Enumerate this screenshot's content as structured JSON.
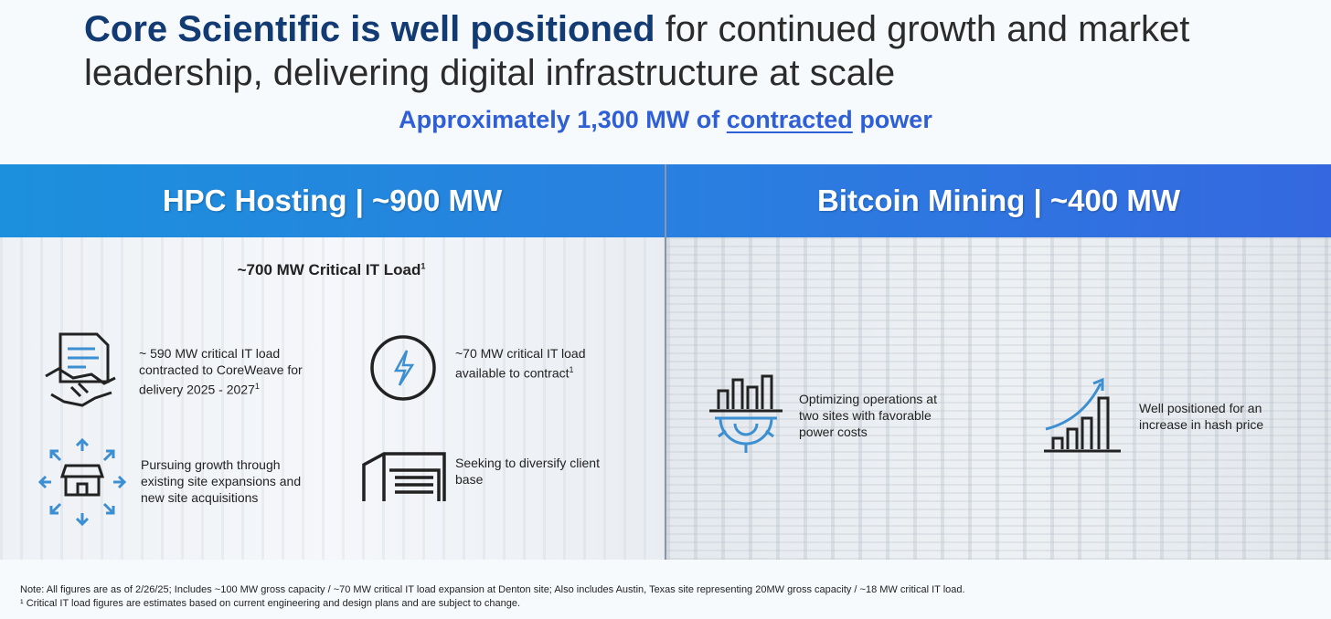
{
  "title": {
    "bold": "Core Scientific is well positioned",
    "rest": " for continued growth and market leadership, delivering digital infrastructure at scale"
  },
  "subtitle": {
    "before": "Approximately 1,300 MW of ",
    "underlined": "contracted",
    "after": " power"
  },
  "left": {
    "header": "HPC Hosting | ~900 MW",
    "heading": {
      "text": "~700 MW Critical IT Load",
      "sup": "1"
    },
    "items": [
      {
        "text": "~ 590 MW critical IT load contracted to CoreWeave for delivery 2025 - 2027",
        "sup": "1"
      },
      {
        "text": "~70 MW critical IT load available to contract",
        "sup": "1"
      },
      {
        "text": "Pursuing growth through existing site expansions and new site acquisitions"
      },
      {
        "text": "Seeking to diversify client base"
      }
    ]
  },
  "right": {
    "header": "Bitcoin Mining | ~400 MW",
    "items": [
      {
        "text": "Optimizing operations at two sites with favorable power costs"
      },
      {
        "text": "Well positioned for an increase in hash price"
      }
    ]
  },
  "notes": [
    "Note: All figures are as of 2/26/25; Includes ~100 MW gross capacity / ~70 MW critical IT load expansion at Denton site; Also includes Austin, Texas site representing 20MW gross capacity / ~18 MW critical IT load.",
    "¹ Critical IT load figures are estimates based on current engineering and design plans and are subject to change."
  ]
}
